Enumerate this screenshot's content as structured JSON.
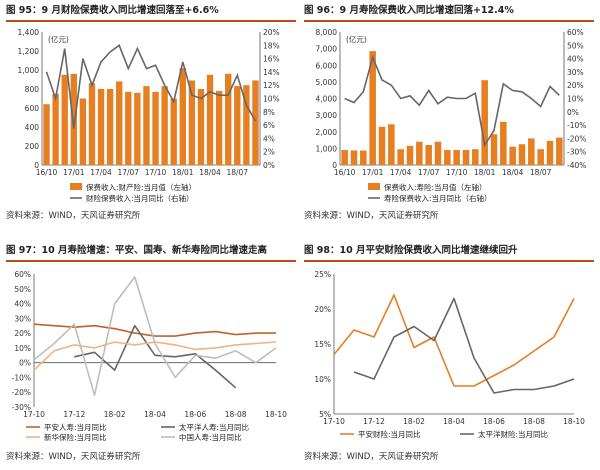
{
  "panels": [
    {
      "title": "图 95：9 月财险保费收入同比增速回落至+6.6%",
      "source": "资料来源：WIND，天风证券研究所"
    },
    {
      "title": "图 96：9 月寿险保费收入同比增速回落+12.4%",
      "source": "资料来源：WIND，天风证券研究所"
    },
    {
      "title": "图 97：10 月寿险增速：平安、国寿、新华寿险同比增速走高",
      "source": "资料来源：WIND，天风证券研究所"
    },
    {
      "title": "图 98：10 月平安财险保费收入同比增速继续回升",
      "source": "资料来源：WIND，天风证券研究所"
    }
  ],
  "colors": {
    "orange": "#e67e22",
    "gray": "#666666",
    "lightgray": "#bdbdbd",
    "lightorange": "#f4b183",
    "brown": "#c0622d",
    "titleline": "#c04a16"
  },
  "chart_data": [
    {
      "type": "bar",
      "unit_label": "(亿元)",
      "x_ticks": [
        "16/10",
        "17/01",
        "17/04",
        "17/07",
        "17/10",
        "18/01",
        "18/04",
        "18/07"
      ],
      "ylim": [
        0,
        1400
      ],
      "yticks": [
        "0",
        "200",
        "400",
        "600",
        "800",
        "1,000",
        "1,200",
        "1,400"
      ],
      "y2lim": [
        0,
        20
      ],
      "y2ticks": [
        "0%",
        "2%",
        "4%",
        "6%",
        "8%",
        "10%",
        "12%",
        "14%",
        "16%",
        "18%",
        "20%"
      ],
      "series": [
        {
          "name": "保费收入:财产险:当月值（左轴）",
          "kind": "bar",
          "axis": "left",
          "values": [
            640,
            750,
            950,
            960,
            700,
            860,
            800,
            800,
            880,
            770,
            760,
            830,
            770,
            830,
            700,
            1020,
            890,
            800,
            950,
            780,
            960,
            830,
            840,
            890
          ]
        },
        {
          "name": "财险保费收入:当月同比（右轴）",
          "kind": "line",
          "axis": "right",
          "values": [
            14.0,
            10.0,
            17.5,
            5.5,
            16.0,
            12.0,
            15.5,
            17.0,
            18.0,
            14.5,
            17.5,
            14.5,
            15.0,
            12.0,
            9.5,
            15.5,
            10.5,
            10.0,
            11.0,
            10.5,
            10.5,
            13.5,
            9.0,
            6.6
          ]
        }
      ]
    },
    {
      "type": "bar",
      "unit_label": "(亿元)",
      "x_ticks": [
        "16/10",
        "17/01",
        "17/04",
        "17/07",
        "17/10",
        "18/01",
        "18/04",
        "18/07"
      ],
      "ylim": [
        0,
        8000
      ],
      "yticks": [
        "0",
        "1,000",
        "2,000",
        "3,000",
        "4,000",
        "5,000",
        "6,000",
        "7,000",
        "8,000"
      ],
      "y2lim": [
        -40,
        60
      ],
      "y2ticks": [
        "-40%",
        "-30%",
        "-20%",
        "-10%",
        "0%",
        "10%",
        "20%",
        "30%",
        "40%",
        "50%",
        "60%"
      ],
      "series": [
        {
          "name": "保费收入:寿险:当月值（左轴）",
          "kind": "bar",
          "axis": "left",
          "values": [
            900,
            880,
            870,
            6850,
            2300,
            2450,
            950,
            1150,
            1400,
            1200,
            1400,
            900,
            900,
            900,
            950,
            5100,
            1850,
            2600,
            1100,
            1250,
            1600,
            950,
            1450,
            1650
          ]
        },
        {
          "name": "寿险保费收入:当月同比（右轴）",
          "kind": "line",
          "axis": "right",
          "values": [
            10,
            7,
            15,
            41,
            24,
            20,
            10,
            12,
            5,
            16,
            6,
            11,
            10,
            10,
            14,
            -25,
            -14,
            21,
            16,
            15,
            10,
            4,
            19,
            12.4
          ]
        }
      ]
    },
    {
      "type": "line",
      "x_ticks": [
        "17-10",
        "17-12",
        "18-02",
        "18-04",
        "18-06",
        "18-08",
        "18-10"
      ],
      "ylim": [
        -30,
        60
      ],
      "yticks": [
        "-30%",
        "-20%",
        "-10%",
        "0%",
        "10%",
        "20%",
        "30%",
        "40%",
        "50%",
        "60%"
      ],
      "series": [
        {
          "name": "平安人寿:当月同比",
          "color": "#c0622d",
          "values": [
            26,
            25,
            24,
            25,
            23,
            20,
            18,
            18,
            20,
            21,
            19,
            20,
            20
          ]
        },
        {
          "name": "太平洋人寿:当月同比",
          "color": "#666666",
          "values": [
            null,
            null,
            4,
            7,
            -5,
            25,
            5,
            4,
            6,
            -5,
            -17,
            null,
            null
          ]
        },
        {
          "name": "新华保险:当月同比",
          "color": "#f4b183",
          "values": [
            -5,
            8,
            12,
            10,
            14,
            12,
            14,
            12,
            9,
            10,
            12,
            13,
            14
          ]
        },
        {
          "name": "中国人寿:当月同比",
          "color": "#bdbdbd",
          "values": [
            2,
            13,
            26,
            -22,
            40,
            58,
            13,
            -10,
            5,
            3,
            8,
            0,
            10
          ]
        }
      ]
    },
    {
      "type": "line",
      "x_ticks": [
        "17-10",
        "17-12",
        "18-02",
        "18-04",
        "18-06",
        "18-08",
        "18-10"
      ],
      "ylim": [
        5,
        25
      ],
      "yticks": [
        "5%",
        "10%",
        "15%",
        "20%",
        "25%"
      ],
      "series": [
        {
          "name": "平安财险:当月同比",
          "color": "#e67e22",
          "values": [
            13.5,
            17,
            16,
            22,
            14.5,
            16,
            9,
            9,
            10.5,
            12,
            14,
            16,
            21.5
          ]
        },
        {
          "name": "太平洋财险:当月同比",
          "color": "#666666",
          "values": [
            null,
            11,
            10,
            16,
            17.5,
            15.5,
            21.5,
            13,
            8,
            8.5,
            8.5,
            9,
            10
          ]
        }
      ]
    }
  ]
}
